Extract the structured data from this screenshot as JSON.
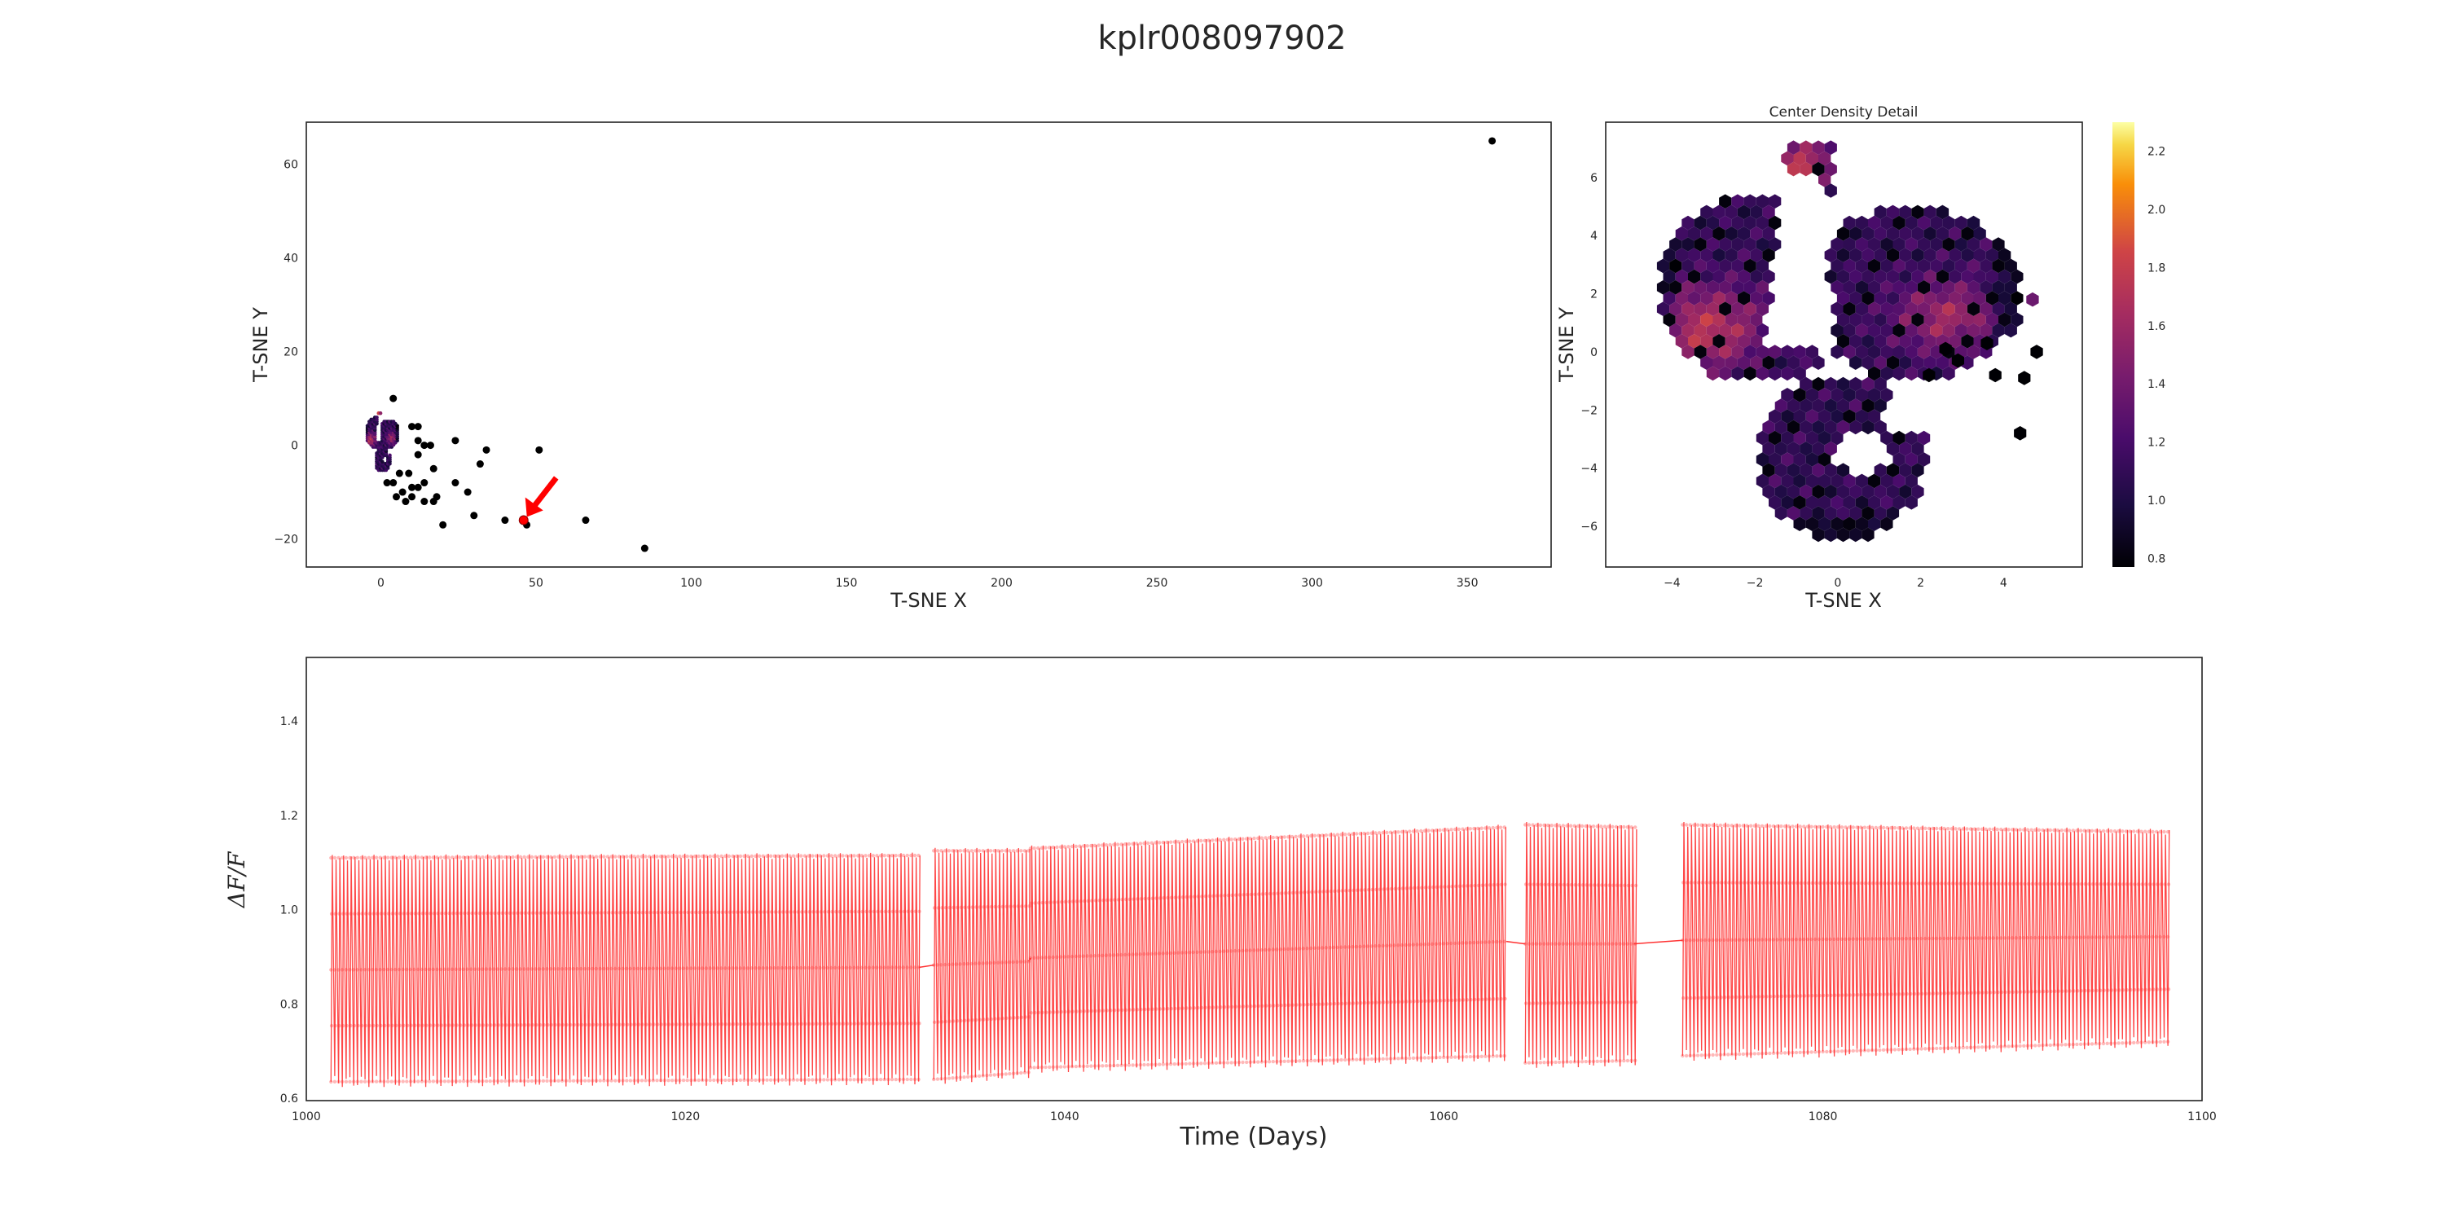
{
  "figure": {
    "title": "kplr008097902"
  },
  "chart_data": [
    {
      "type": "scatter",
      "xlabel": "T-SNE X",
      "ylabel": "T-SNE Y",
      "xlim": [
        -24,
        377
      ],
      "ylim": [
        -26,
        69
      ],
      "xticks": [
        0,
        50,
        100,
        150,
        200,
        250,
        300,
        350
      ],
      "yticks": [
        -20,
        0,
        20,
        40,
        60
      ],
      "outliers": [
        [
          4,
          10
        ],
        [
          10,
          4
        ],
        [
          12,
          4
        ],
        [
          14,
          0
        ],
        [
          12,
          1
        ],
        [
          16,
          0
        ],
        [
          24,
          1
        ],
        [
          34,
          -1
        ],
        [
          51,
          -1
        ],
        [
          12,
          -2
        ],
        [
          17,
          -5
        ],
        [
          32,
          -4
        ],
        [
          9,
          -6
        ],
        [
          6,
          -6
        ],
        [
          4,
          -8
        ],
        [
          2,
          -8
        ],
        [
          10,
          -9
        ],
        [
          14,
          -8
        ],
        [
          12,
          -9
        ],
        [
          7,
          -10
        ],
        [
          5,
          -11
        ],
        [
          10,
          -11
        ],
        [
          8,
          -12
        ],
        [
          14,
          -12
        ],
        [
          17,
          -12
        ],
        [
          18,
          -11
        ],
        [
          24,
          -8
        ],
        [
          28,
          -10
        ],
        [
          30,
          -15
        ],
        [
          40,
          -16
        ],
        [
          20,
          -17
        ],
        [
          47,
          -17
        ],
        [
          66,
          -16
        ],
        [
          85,
          -22
        ],
        [
          358,
          65
        ]
      ],
      "highlight": {
        "point": [
          46,
          -16
        ],
        "color": "#ff0000"
      }
    },
    {
      "type": "heatmap",
      "title": "Center Density Detail",
      "xlabel": "T-SNE X",
      "ylabel": "T-SNE Y",
      "xlim": [
        -5.6,
        5.9
      ],
      "ylim": [
        -7.4,
        7.9
      ],
      "xticks": [
        -4,
        -2,
        0,
        2,
        4
      ],
      "yticks": [
        -6,
        -4,
        -2,
        0,
        2,
        4,
        6
      ],
      "colorbar": {
        "range": [
          0.77,
          2.3
        ],
        "ticks": [
          0.8,
          1.0,
          1.2,
          1.4,
          1.6,
          1.8,
          2.0,
          2.2
        ],
        "colormap": "inferno"
      }
    },
    {
      "type": "line",
      "xlabel": "Time (Days)",
      "ylabel": "ΔF/F",
      "xlim": [
        1000,
        1100
      ],
      "ylim": [
        0.595,
        1.535
      ],
      "xticks": [
        1000,
        1020,
        1040,
        1060,
        1080,
        1100
      ],
      "yticks": [
        0.6,
        0.8,
        1.0,
        1.2,
        1.4
      ],
      "color": "#ff3333",
      "segments": [
        {
          "start": 1001.3,
          "end": 1032.3,
          "low_start": 0.635,
          "low_end": 0.64,
          "high_start": 1.11,
          "high_end": 1.115
        },
        {
          "start": 1033.1,
          "end": 1038.1,
          "low_start": 0.64,
          "low_end": 0.655,
          "high_start": 1.125,
          "high_end": 1.125
        },
        {
          "start": 1038.2,
          "end": 1063.3,
          "low_start": 0.665,
          "low_end": 0.69,
          "high_start": 1.13,
          "high_end": 1.175
        },
        {
          "start": 1064.3,
          "end": 1070.0,
          "low_start": 0.675,
          "low_end": 0.68,
          "high_start": 1.18,
          "high_end": 1.175
        },
        {
          "start": 1072.6,
          "end": 1098.2,
          "low_start": 0.69,
          "low_end": 0.72,
          "high_start": 1.18,
          "high_end": 1.165
        }
      ]
    }
  ]
}
